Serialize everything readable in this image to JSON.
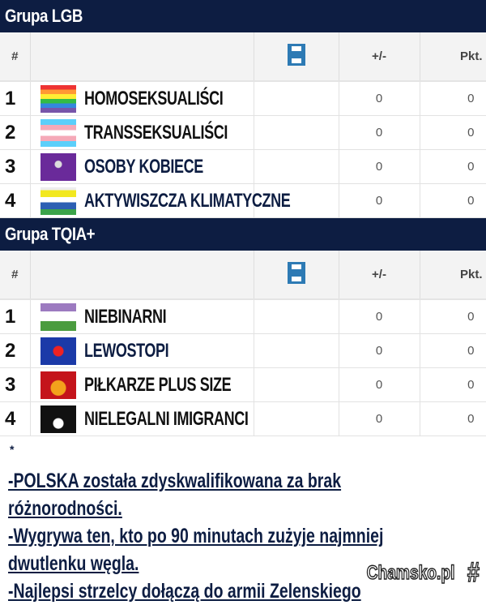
{
  "columns": {
    "rank": "#",
    "played_icon": "football-pitch-icon",
    "diff": "+/-",
    "points": "Pkt."
  },
  "groups": [
    {
      "title": "Grupa LGB",
      "rows": [
        {
          "rank": "1",
          "team": "HOMOSEKSUALIŚCI",
          "flag": "rainbow-flag-icon",
          "diff": "0",
          "points": "0",
          "color": "#111111"
        },
        {
          "rank": "2",
          "team": "TRANSSEKSUALIŚCI",
          "flag": "transgender-flag-icon",
          "diff": "0",
          "points": "0",
          "color": "#111111"
        },
        {
          "rank": "3",
          "team": "OSOBY KOBIECE",
          "flag": "feminist-flag-icon",
          "diff": "0",
          "points": "0",
          "color": "#0d1d42"
        },
        {
          "rank": "4",
          "team": "AKTYWISZCZA KLIMATYCZNE",
          "flag": "climate-flag-icon",
          "diff": "0",
          "points": "0",
          "color": "#0d1d42"
        }
      ]
    },
    {
      "title": "Grupa TQIA+",
      "rows": [
        {
          "rank": "1",
          "team": "NIEBINARNI",
          "flag": "nonbinary-flag-icon",
          "diff": "0",
          "points": "0",
          "color": "#111111"
        },
        {
          "rank": "2",
          "team": "LEWOSTOPI",
          "flag": "eu-communist-flag-icon",
          "diff": "0",
          "points": "0",
          "color": "#0d1d42"
        },
        {
          "rank": "3",
          "team": "PIŁKARZE PLUS SIZE",
          "flag": "fast-food-flag-icon",
          "diff": "0",
          "points": "0",
          "color": "#111111"
        },
        {
          "rank": "4",
          "team": "NIELEGALNI IMIGRANCI",
          "flag": "black-flag-icon",
          "diff": "0",
          "points": "0",
          "color": "#111111"
        }
      ]
    }
  ],
  "notes": {
    "asterisk": "*",
    "lines": [
      "-POLSKA została zdyskwalifikowana za brak",
      "różnorodności.",
      "-Wygrywa ten, kto po 90 minutach zużyje najmniej",
      "dwutlenku węgla.",
      "-Najlepsi strzelcy dołączą do armii Zelenskiego"
    ]
  },
  "watermark": "Chamsko.pl"
}
